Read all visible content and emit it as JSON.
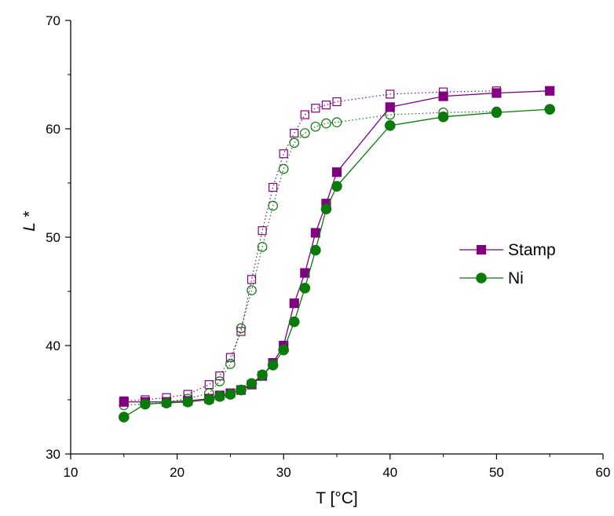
{
  "chart_data": {
    "type": "scatter",
    "xlabel": "T [°C]",
    "ylabel": "L *",
    "xlim": [
      10,
      60
    ],
    "ylim": [
      30,
      70
    ],
    "xticks": [
      10,
      20,
      30,
      40,
      50,
      60
    ],
    "yticks": [
      30,
      40,
      50,
      60,
      70
    ],
    "grid": false,
    "legend_position": "right",
    "series": [
      {
        "name": "Stamp",
        "color": "#800080",
        "marker": "square",
        "filled": true,
        "line": "solid",
        "x": [
          15,
          17,
          19,
          21,
          23,
          24,
          25,
          26,
          27,
          28,
          29,
          30,
          31,
          32,
          33,
          34,
          35,
          40,
          45,
          50,
          55
        ],
        "y": [
          34.8,
          34.8,
          34.8,
          34.9,
          35.1,
          35.4,
          35.6,
          35.9,
          36.4,
          37.2,
          38.4,
          40.0,
          43.9,
          46.7,
          50.4,
          53.1,
          56.0,
          62.0,
          63.0,
          63.3,
          63.5
        ]
      },
      {
        "name": "Ni",
        "color": "#0a7a0a",
        "marker": "circle",
        "filled": true,
        "line": "solid",
        "x": [
          15,
          17,
          19,
          21,
          23,
          24,
          25,
          26,
          27,
          28,
          29,
          30,
          31,
          32,
          33,
          34,
          35,
          40,
          45,
          50,
          55
        ],
        "y": [
          33.4,
          34.6,
          34.7,
          34.8,
          35.0,
          35.3,
          35.5,
          35.9,
          36.5,
          37.3,
          38.2,
          39.6,
          42.2,
          45.3,
          48.8,
          52.6,
          54.7,
          60.3,
          61.1,
          61.5,
          61.8
        ]
      },
      {
        "name": "",
        "color": "#800080",
        "marker": "square",
        "filled": false,
        "line": "dotted",
        "x": [
          15,
          17,
          19,
          21,
          23,
          24,
          25,
          26,
          27,
          28,
          29,
          30,
          31,
          32,
          33,
          34,
          35,
          40,
          45,
          50
        ],
        "y": [
          34.9,
          35.0,
          35.2,
          35.5,
          36.4,
          37.2,
          38.9,
          41.3,
          46.1,
          50.6,
          54.6,
          57.7,
          59.6,
          61.3,
          61.9,
          62.2,
          62.5,
          63.2,
          63.4,
          63.5
        ]
      },
      {
        "name": "",
        "color": "#0a7a0a",
        "marker": "circle",
        "filled": false,
        "line": "dotted",
        "x": [
          15,
          17,
          19,
          21,
          23,
          24,
          25,
          26,
          27,
          28,
          29,
          30,
          31,
          32,
          33,
          34,
          35,
          40,
          45,
          50
        ],
        "y": [
          34.5,
          34.6,
          34.8,
          35.1,
          35.6,
          36.7,
          38.3,
          41.6,
          45.1,
          49.1,
          52.9,
          56.3,
          58.7,
          59.6,
          60.2,
          60.5,
          60.6,
          61.3,
          61.5,
          61.6
        ]
      }
    ]
  }
}
